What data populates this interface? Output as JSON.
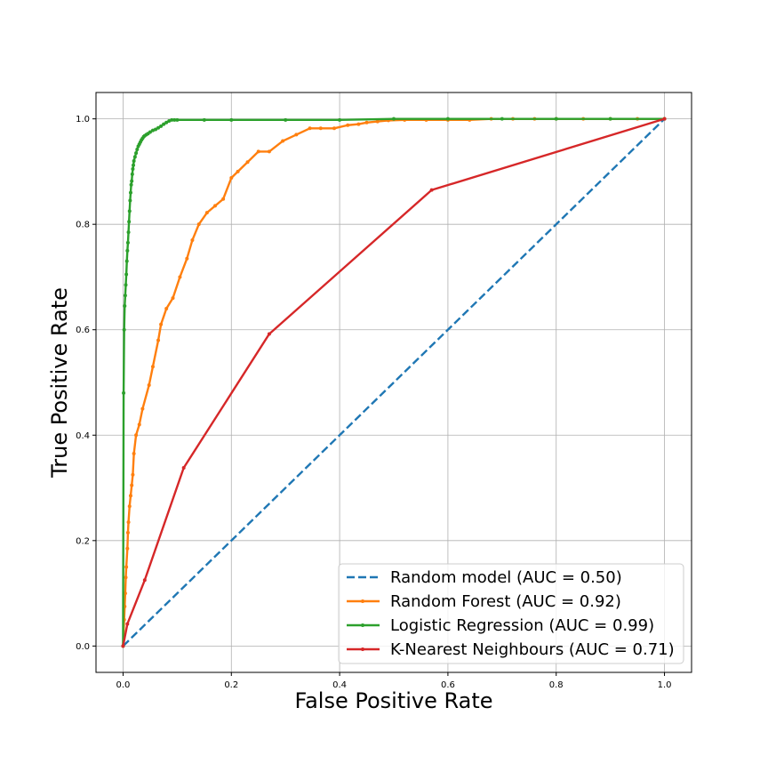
{
  "chart_data": {
    "type": "line",
    "title": "",
    "xlabel": "False Positive Rate",
    "ylabel": "True Positive Rate",
    "xlim": [
      -0.05,
      1.05
    ],
    "ylim": [
      -0.05,
      1.05
    ],
    "xticks": [
      "0.0",
      "0.2",
      "0.4",
      "0.6",
      "0.8",
      "1.0"
    ],
    "yticks": [
      "0.0",
      "0.2",
      "0.4",
      "0.6",
      "0.8",
      "1.0"
    ],
    "grid": true,
    "legend_position": "lower-right",
    "series": [
      {
        "name": "Random model (AUC = 0.50)",
        "color": "#1f77b4",
        "line_style": "dashed",
        "markers": false,
        "x": [
          0,
          1
        ],
        "y": [
          0,
          1
        ]
      },
      {
        "name": "Random Forest (AUC = 0.92)",
        "color": "#ff7f0e",
        "line_style": "solid",
        "markers": true,
        "x": [
          0,
          0.002,
          0.003,
          0.004,
          0.005,
          0.006,
          0.008,
          0.009,
          0.01,
          0.012,
          0.014,
          0.016,
          0.018,
          0.02,
          0.024,
          0.03,
          0.036,
          0.048,
          0.055,
          0.065,
          0.07,
          0.08,
          0.092,
          0.105,
          0.118,
          0.128,
          0.14,
          0.155,
          0.17,
          0.185,
          0.2,
          0.212,
          0.23,
          0.25,
          0.27,
          0.295,
          0.32,
          0.345,
          0.365,
          0.39,
          0.415,
          0.435,
          0.45,
          0.47,
          0.49,
          0.52,
          0.56,
          0.6,
          0.64,
          0.68,
          0.72,
          0.76,
          0.8,
          0.85,
          0.9,
          0.95,
          1.0
        ],
        "y": [
          0,
          0.05,
          0.075,
          0.1,
          0.13,
          0.15,
          0.185,
          0.215,
          0.235,
          0.265,
          0.285,
          0.305,
          0.325,
          0.365,
          0.4,
          0.42,
          0.45,
          0.495,
          0.53,
          0.58,
          0.61,
          0.64,
          0.66,
          0.7,
          0.735,
          0.77,
          0.8,
          0.822,
          0.835,
          0.848,
          0.888,
          0.9,
          0.918,
          0.938,
          0.938,
          0.958,
          0.97,
          0.982,
          0.982,
          0.982,
          0.988,
          0.99,
          0.993,
          0.995,
          0.997,
          0.998,
          0.998,
          0.998,
          0.998,
          1.0,
          1.0,
          1.0,
          1.0,
          1.0,
          1.0,
          1.0,
          1.0
        ]
      },
      {
        "name": "Logistic Regression (AUC = 0.99)",
        "color": "#2ca02c",
        "line_style": "solid",
        "markers": true,
        "x": [
          0,
          0.001,
          0.002,
          0.003,
          0.004,
          0.005,
          0.006,
          0.007,
          0.008,
          0.009,
          0.01,
          0.011,
          0.012,
          0.013,
          0.014,
          0.015,
          0.016,
          0.017,
          0.018,
          0.019,
          0.02,
          0.022,
          0.024,
          0.026,
          0.028,
          0.03,
          0.032,
          0.034,
          0.036,
          0.038,
          0.04,
          0.043,
          0.046,
          0.05,
          0.055,
          0.06,
          0.065,
          0.07,
          0.075,
          0.08,
          0.085,
          0.09,
          0.095,
          0.1,
          0.15,
          0.2,
          0.3,
          0.4,
          0.5,
          0.6,
          0.7,
          0.8,
          0.9,
          1.0
        ],
        "y": [
          0,
          0.48,
          0.6,
          0.645,
          0.665,
          0.685,
          0.705,
          0.73,
          0.75,
          0.765,
          0.785,
          0.805,
          0.825,
          0.845,
          0.86,
          0.875,
          0.882,
          0.895,
          0.905,
          0.912,
          0.92,
          0.928,
          0.935,
          0.942,
          0.948,
          0.952,
          0.956,
          0.96,
          0.963,
          0.966,
          0.968,
          0.97,
          0.972,
          0.975,
          0.978,
          0.98,
          0.983,
          0.986,
          0.99,
          0.993,
          0.996,
          0.998,
          0.998,
          0.998,
          0.998,
          0.998,
          0.998,
          0.998,
          1.0,
          1.0,
          1.0,
          1.0,
          1.0,
          1.0
        ]
      },
      {
        "name": "K-Nearest Neighbours (AUC = 0.71)",
        "color": "#d62728",
        "line_style": "solid",
        "markers": true,
        "x": [
          0,
          0.008,
          0.04,
          0.112,
          0.27,
          0.57,
          1.0
        ],
        "y": [
          0,
          0.042,
          0.125,
          0.338,
          0.592,
          0.865,
          1.0
        ]
      }
    ]
  }
}
